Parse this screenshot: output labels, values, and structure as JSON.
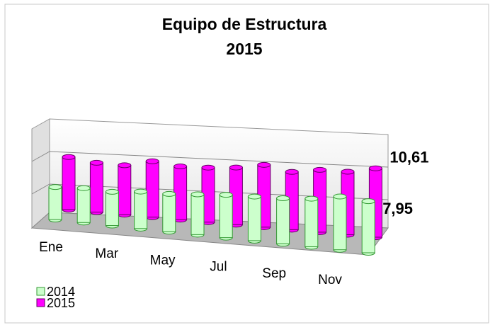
{
  "chart_data": {
    "type": "bar3d_cylinder",
    "title": "Equipo de Estructura",
    "subtitle": "2015",
    "categories": [
      "Ene",
      null,
      "Mar",
      null,
      "May",
      null,
      "Jul",
      null,
      "Sep",
      null,
      "Nov",
      null
    ],
    "ylim": [
      0,
      12
    ],
    "series": [
      {
        "name": "2014",
        "color": "#ccffcc",
        "values": [
          5.0,
          5.3,
          5.2,
          5.7,
          5.8,
          6.2,
          6.6,
          6.8,
          7.0,
          7.4,
          8.2,
          7.95
        ],
        "value_labels": [
          null,
          null,
          null,
          null,
          null,
          null,
          null,
          null,
          null,
          null,
          null,
          "7,95"
        ]
      },
      {
        "name": "2015",
        "color": "#ff00ff",
        "values": [
          8.1,
          7.6,
          7.6,
          8.6,
          8.2,
          8.4,
          8.8,
          9.6,
          8.9,
          9.6,
          9.7,
          10.61
        ],
        "value_labels": [
          null,
          null,
          null,
          null,
          null,
          null,
          null,
          null,
          null,
          null,
          null,
          "10,61"
        ]
      }
    ],
    "legend": "bottom-left"
  }
}
